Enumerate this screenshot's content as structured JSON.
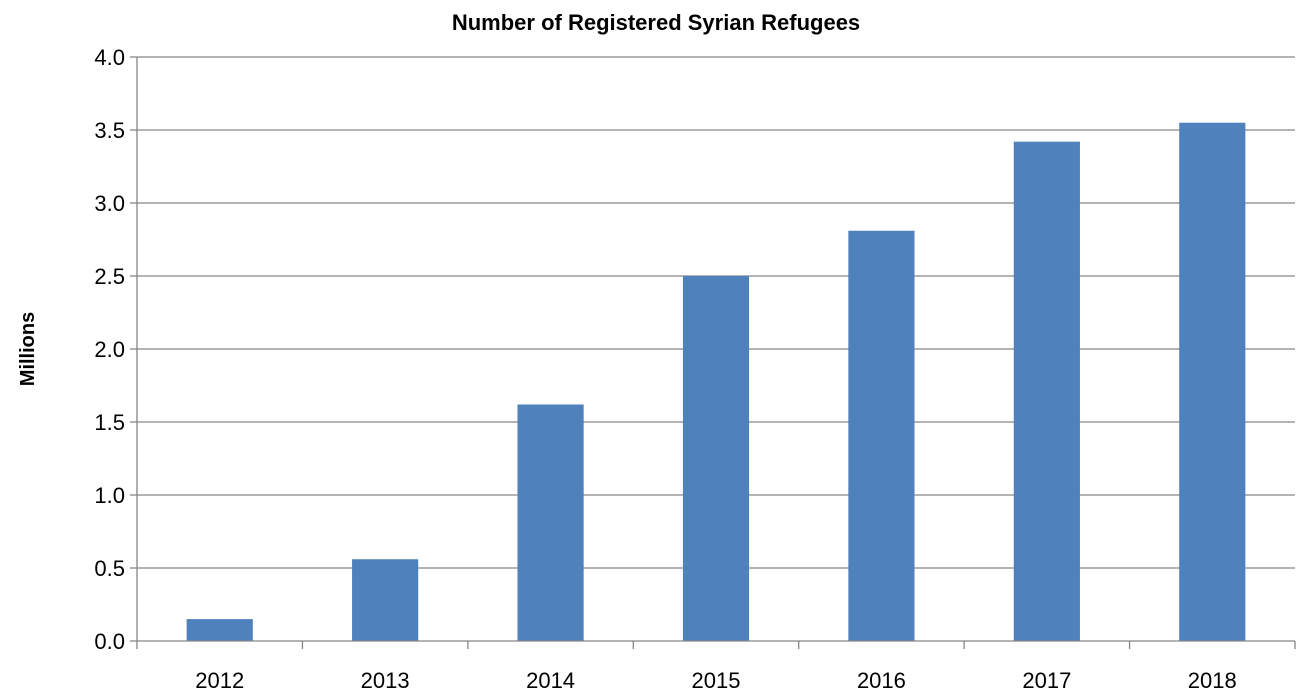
{
  "chart_data": {
    "type": "bar",
    "title": "Number of Registered Syrian Refugees",
    "xlabel": "",
    "ylabel": "Millions",
    "categories": [
      "2012",
      "2013",
      "2014",
      "2015",
      "2016",
      "2017",
      "2018"
    ],
    "series": [
      {
        "values": [
          0.15,
          0.56,
          1.62,
          2.5,
          2.81,
          3.42,
          3.55
        ]
      }
    ],
    "ylim": [
      0,
      4
    ],
    "yticks": [
      "0.0",
      "0.5",
      "1.0",
      "1.5",
      "2.0",
      "2.5",
      "3.0",
      "3.5",
      "4.0"
    ],
    "grid": true,
    "legend": "none",
    "colors": {
      "bar": "#4f81bd",
      "grid": "#868686"
    }
  }
}
